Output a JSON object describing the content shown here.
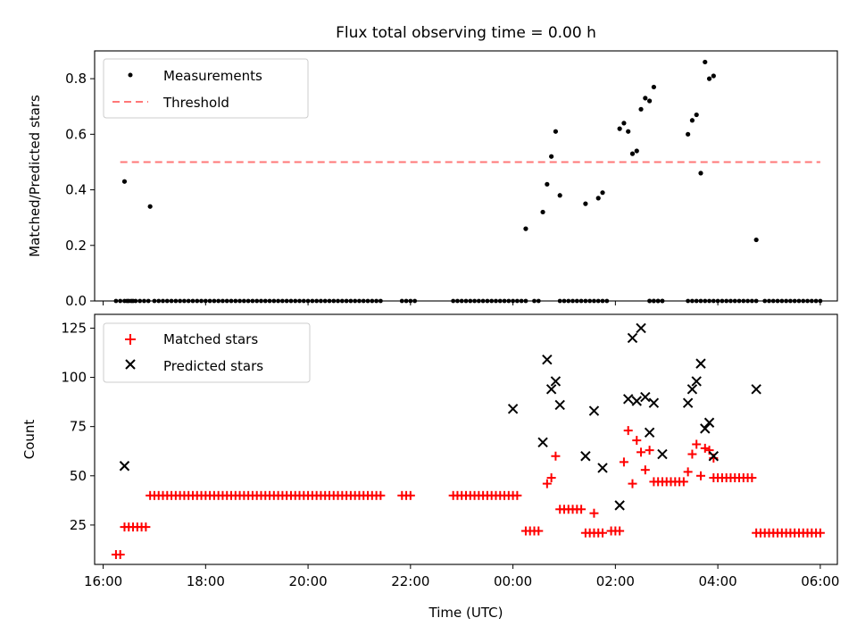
{
  "title": "Flux total observing time = 0.00 h",
  "chart_data": [
    {
      "type": "scatter",
      "xlabel": "",
      "ylabel": "Matched/Predicted stars",
      "xlim": [
        "15:50",
        "30:20"
      ],
      "ylim": [
        0,
        0.9
      ],
      "yticks": [
        0.0,
        0.2,
        0.4,
        0.6,
        0.8
      ],
      "ytick_labels": [
        "0.0",
        "0.2",
        "0.4",
        "0.6",
        "0.8"
      ],
      "legend_position": "top-left",
      "threshold": {
        "name": "Threshold",
        "color": "#ff7777",
        "y": 0.5,
        "x_start": "16:20",
        "x_end": "30:00"
      },
      "measurements": {
        "name": "Measurements",
        "color": "#000000",
        "zero_ranges": [
          [
            "16:15",
            "16:35"
          ],
          [
            "16:28",
            "16:55"
          ],
          [
            "17:00",
            "21:25"
          ],
          [
            "21:50",
            "22:05"
          ],
          [
            "22:50",
            "24:15"
          ],
          [
            "24:25",
            "24:30"
          ],
          [
            "24:55",
            "25:30"
          ],
          [
            "25:35",
            "25:50"
          ],
          [
            "26:40",
            "26:55"
          ],
          [
            "26:40",
            "26:55"
          ],
          [
            "27:25",
            "27:50"
          ],
          [
            "27:55",
            "28:45"
          ],
          [
            "28:55",
            "30:00"
          ]
        ],
        "points": [
          [
            "16:25",
            0.43
          ],
          [
            "16:55",
            0.34
          ],
          [
            "24:15",
            0.26
          ],
          [
            "24:35",
            0.32
          ],
          [
            "24:40",
            0.42
          ],
          [
            "24:45",
            0.52
          ],
          [
            "24:50",
            0.61
          ],
          [
            "24:55",
            0.38
          ],
          [
            "25:25",
            0.35
          ],
          [
            "25:40",
            0.37
          ],
          [
            "25:45",
            0.39
          ],
          [
            "26:05",
            0.62
          ],
          [
            "26:10",
            0.64
          ],
          [
            "26:15",
            0.61
          ],
          [
            "26:20",
            0.53
          ],
          [
            "26:25",
            0.54
          ],
          [
            "26:30",
            0.69
          ],
          [
            "26:35",
            0.73
          ],
          [
            "26:40",
            0.72
          ],
          [
            "26:45",
            0.77
          ],
          [
            "27:25",
            0.6
          ],
          [
            "27:30",
            0.65
          ],
          [
            "27:35",
            0.67
          ],
          [
            "27:40",
            0.46
          ],
          [
            "27:45",
            0.86
          ],
          [
            "27:50",
            0.8
          ],
          [
            "27:55",
            0.81
          ],
          [
            "28:45",
            0.22
          ]
        ]
      }
    },
    {
      "type": "scatter",
      "xlabel": "Time (UTC)",
      "ylabel": "Count",
      "xlim": [
        "15:50",
        "30:20"
      ],
      "ylim": [
        5,
        132
      ],
      "yticks": [
        25,
        50,
        75,
        100,
        125
      ],
      "ytick_labels": [
        "25",
        "50",
        "75",
        "100",
        "125"
      ],
      "xticks": [
        "16:00",
        "18:00",
        "20:00",
        "22:00",
        "24:00",
        "26:00",
        "28:00",
        "30:00"
      ],
      "xtick_labels": [
        "16:00",
        "18:00",
        "20:00",
        "22:00",
        "00:00",
        "02:00",
        "04:00",
        "06:00"
      ],
      "legend_position": "top-left",
      "matched": {
        "name": "Matched stars",
        "color": "#ff0000",
        "runs": [
          [
            "16:15",
            "16:20",
            10
          ],
          [
            "16:25",
            "16:50",
            24
          ],
          [
            "16:55",
            "21:25",
            40
          ],
          [
            "21:50",
            "22:00",
            40
          ],
          [
            "22:50",
            "24:05",
            40
          ],
          [
            "24:15",
            "24:30",
            22
          ],
          [
            "24:55",
            "25:20",
            33
          ],
          [
            "25:25",
            "25:45",
            21
          ],
          [
            "25:55",
            "26:05",
            22
          ],
          [
            "26:45",
            "27:20",
            47
          ],
          [
            "27:55",
            "28:40",
            49
          ],
          [
            "28:45",
            "30:00",
            21
          ]
        ],
        "points": [
          [
            "24:40",
            46
          ],
          [
            "24:45",
            49
          ],
          [
            "24:50",
            60
          ],
          [
            "25:35",
            31
          ],
          [
            "26:10",
            57
          ],
          [
            "26:15",
            73
          ],
          [
            "26:20",
            46
          ],
          [
            "26:25",
            68
          ],
          [
            "26:30",
            62
          ],
          [
            "26:35",
            53
          ],
          [
            "26:40",
            63
          ],
          [
            "27:25",
            52
          ],
          [
            "27:30",
            61
          ],
          [
            "27:35",
            66
          ],
          [
            "27:40",
            50
          ],
          [
            "27:45",
            64
          ],
          [
            "27:50",
            63
          ],
          [
            "27:55",
            59
          ]
        ]
      },
      "predicted": {
        "name": "Predicted stars",
        "color": "#000000",
        "points": [
          [
            "16:25",
            55
          ],
          [
            "24:00",
            84
          ],
          [
            "24:35",
            67
          ],
          [
            "24:40",
            109
          ],
          [
            "24:45",
            94
          ],
          [
            "24:50",
            98
          ],
          [
            "24:55",
            86
          ],
          [
            "25:25",
            60
          ],
          [
            "25:35",
            83
          ],
          [
            "25:45",
            54
          ],
          [
            "26:05",
            35
          ],
          [
            "26:15",
            89
          ],
          [
            "26:20",
            120
          ],
          [
            "26:25",
            88
          ],
          [
            "26:30",
            125
          ],
          [
            "26:35",
            90
          ],
          [
            "26:40",
            72
          ],
          [
            "26:45",
            87
          ],
          [
            "26:55",
            61
          ],
          [
            "27:25",
            87
          ],
          [
            "27:30",
            94
          ],
          [
            "27:35",
            98
          ],
          [
            "27:40",
            107
          ],
          [
            "27:45",
            74
          ],
          [
            "27:50",
            77
          ],
          [
            "27:55",
            60
          ],
          [
            "28:45",
            94
          ]
        ]
      }
    }
  ]
}
